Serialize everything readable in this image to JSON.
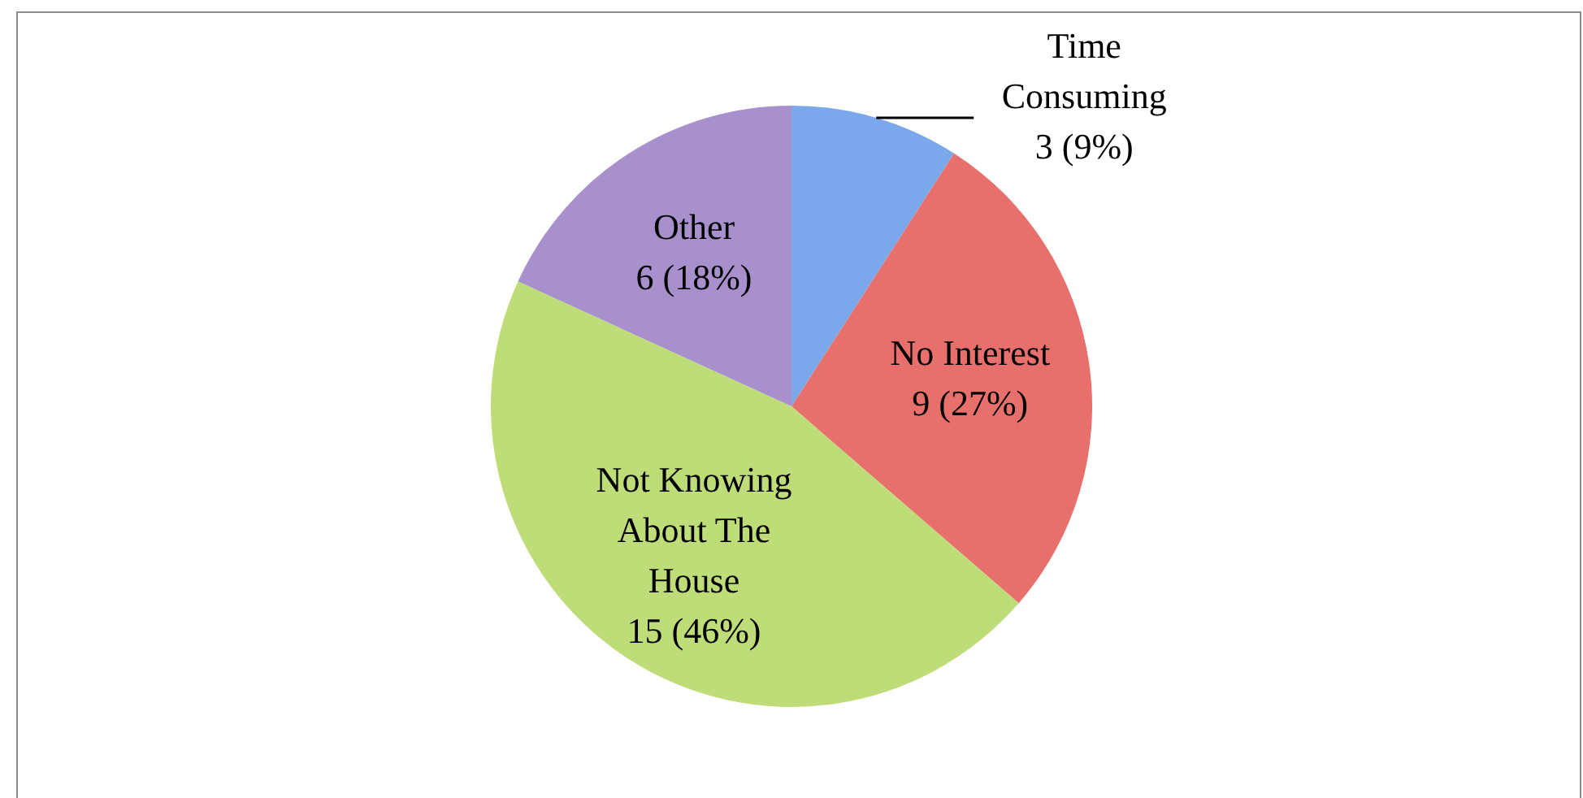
{
  "chart_data": {
    "type": "pie",
    "categories": [
      "Time Consuming",
      "No Interest",
      "Not Knowing About The House",
      "Other"
    ],
    "values": [
      3,
      9,
      15,
      6
    ],
    "colors": [
      "#7aa8ea",
      "#e8706c",
      "#bedd78",
      "#a890cc"
    ],
    "value_labels": [
      "3 (9%)",
      "9 (27%)",
      "15 (46%)",
      "6 (18%)"
    ],
    "legend": false
  }
}
